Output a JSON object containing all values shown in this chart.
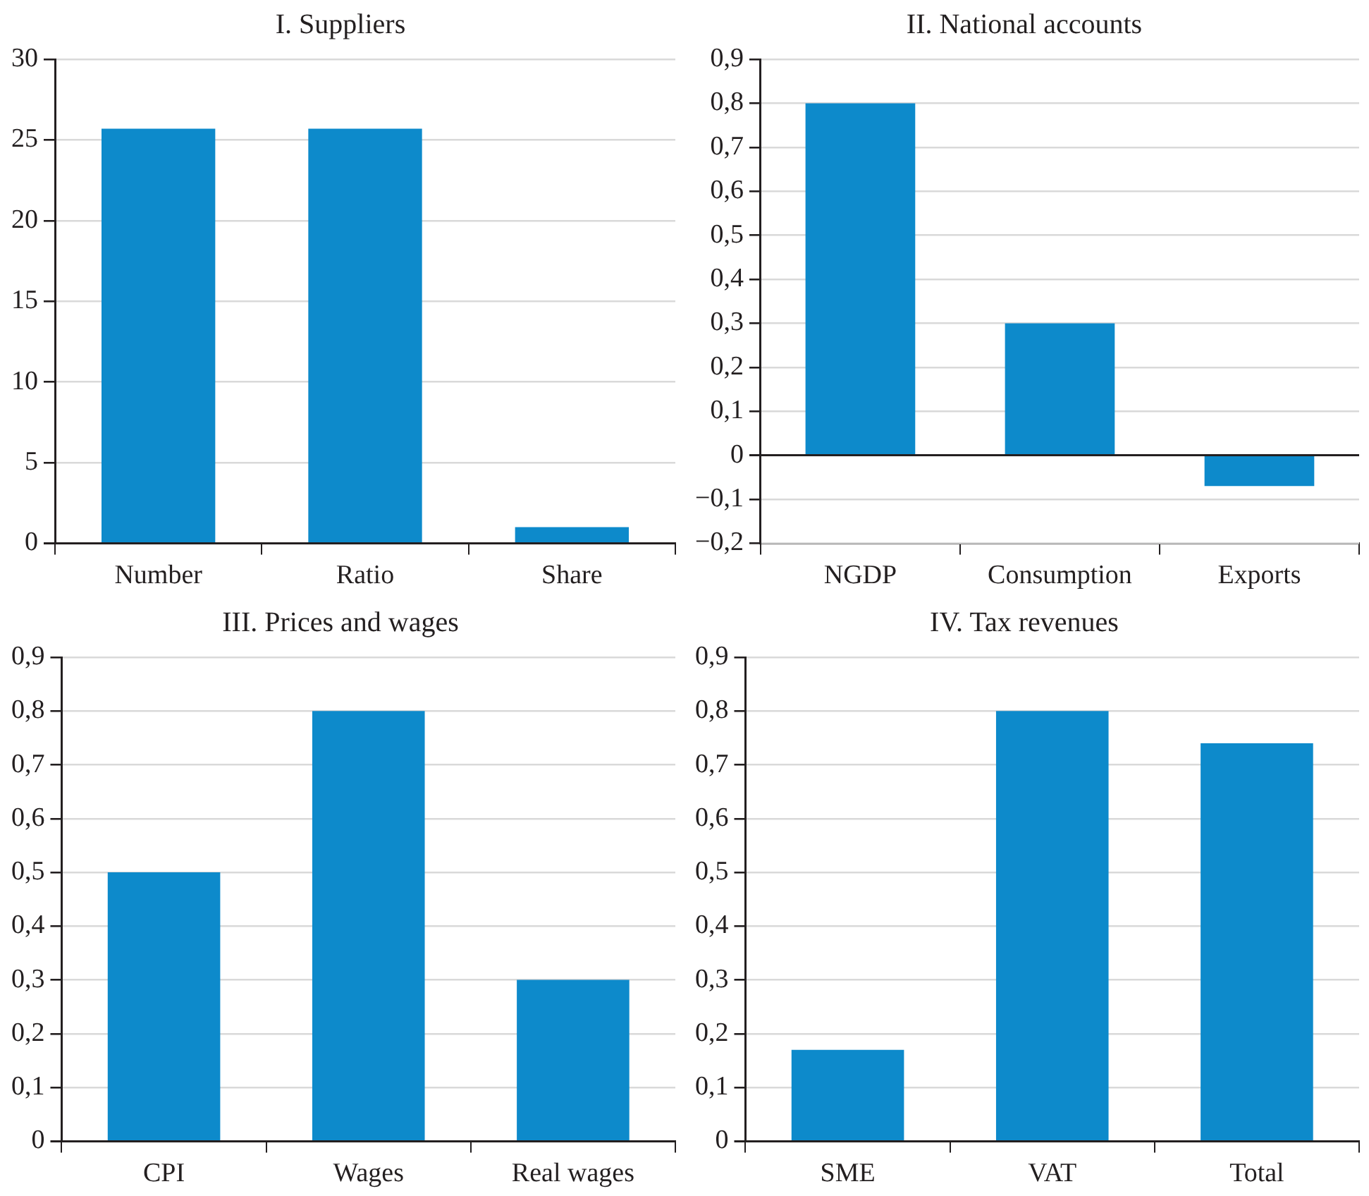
{
  "chart_data": [
    {
      "type": "bar",
      "title": "I. Suppliers",
      "categories": [
        "Number",
        "Ratio",
        "Share"
      ],
      "values": [
        25.7,
        25.7,
        1.0
      ],
      "color": "#0d8acb",
      "ylim": [
        0,
        30
      ],
      "yticks": [
        0,
        5,
        10,
        15,
        20,
        25,
        30
      ],
      "grid": "y",
      "legend": false
    },
    {
      "type": "bar",
      "title": "II. National accounts",
      "categories": [
        "NGDP",
        "Consumption",
        "Exports"
      ],
      "values": [
        0.8,
        0.3,
        -0.07
      ],
      "color": "#0d8acb",
      "ylim": [
        -0.2,
        0.9
      ],
      "yticks": [
        {
          "value": -0.2,
          "label": "−0,2"
        },
        {
          "value": -0.1,
          "label": "−0,1"
        },
        {
          "value": 0,
          "label": "0"
        },
        {
          "value": 0.1,
          "label": "0,1"
        },
        {
          "value": 0.2,
          "label": "0,2"
        },
        {
          "value": 0.3,
          "label": "0,3"
        },
        {
          "value": 0.4,
          "label": "0,4"
        },
        {
          "value": 0.5,
          "label": "0,5"
        },
        {
          "value": 0.6,
          "label": "0,6"
        },
        {
          "value": 0.7,
          "label": "0,7"
        },
        {
          "value": 0.8,
          "label": "0,8"
        },
        {
          "value": 0.9,
          "label": "0,9"
        }
      ],
      "grid": "y",
      "legend": false
    },
    {
      "type": "bar",
      "title": "III. Prices and wages",
      "categories": [
        "CPI",
        "Wages",
        "Real wages"
      ],
      "values": [
        0.5,
        0.8,
        0.3
      ],
      "color": "#0d8acb",
      "ylim": [
        0,
        0.9
      ],
      "yticks": [
        0,
        {
          "value": 0.1,
          "label": "0,1"
        },
        {
          "value": 0.2,
          "label": "0,2"
        },
        {
          "value": 0.3,
          "label": "0,3"
        },
        {
          "value": 0.4,
          "label": "0,4"
        },
        {
          "value": 0.5,
          "label": "0,5"
        },
        {
          "value": 0.6,
          "label": "0,6"
        },
        {
          "value": 0.7,
          "label": "0,7"
        },
        {
          "value": 0.8,
          "label": "0,8"
        },
        {
          "value": 0.9,
          "label": "0,9"
        }
      ],
      "grid": "y",
      "legend": false
    },
    {
      "type": "bar",
      "title": "IV. Tax revenues",
      "categories": [
        "SME",
        "VAT",
        "Total"
      ],
      "values": [
        0.17,
        0.8,
        0.74
      ],
      "color": "#0d8acb",
      "ylim": [
        0,
        0.9
      ],
      "yticks": [
        0,
        {
          "value": 0.1,
          "label": "0,1"
        },
        {
          "value": 0.2,
          "label": "0,2"
        },
        {
          "value": 0.3,
          "label": "0,3"
        },
        {
          "value": 0.4,
          "label": "0,4"
        },
        {
          "value": 0.5,
          "label": "0,5"
        },
        {
          "value": 0.6,
          "label": "0,6"
        },
        {
          "value": 0.7,
          "label": "0,7"
        },
        {
          "value": 0.8,
          "label": "0,8"
        },
        {
          "value": 0.9,
          "label": "0,9"
        }
      ],
      "grid": "y",
      "legend": false
    }
  ]
}
